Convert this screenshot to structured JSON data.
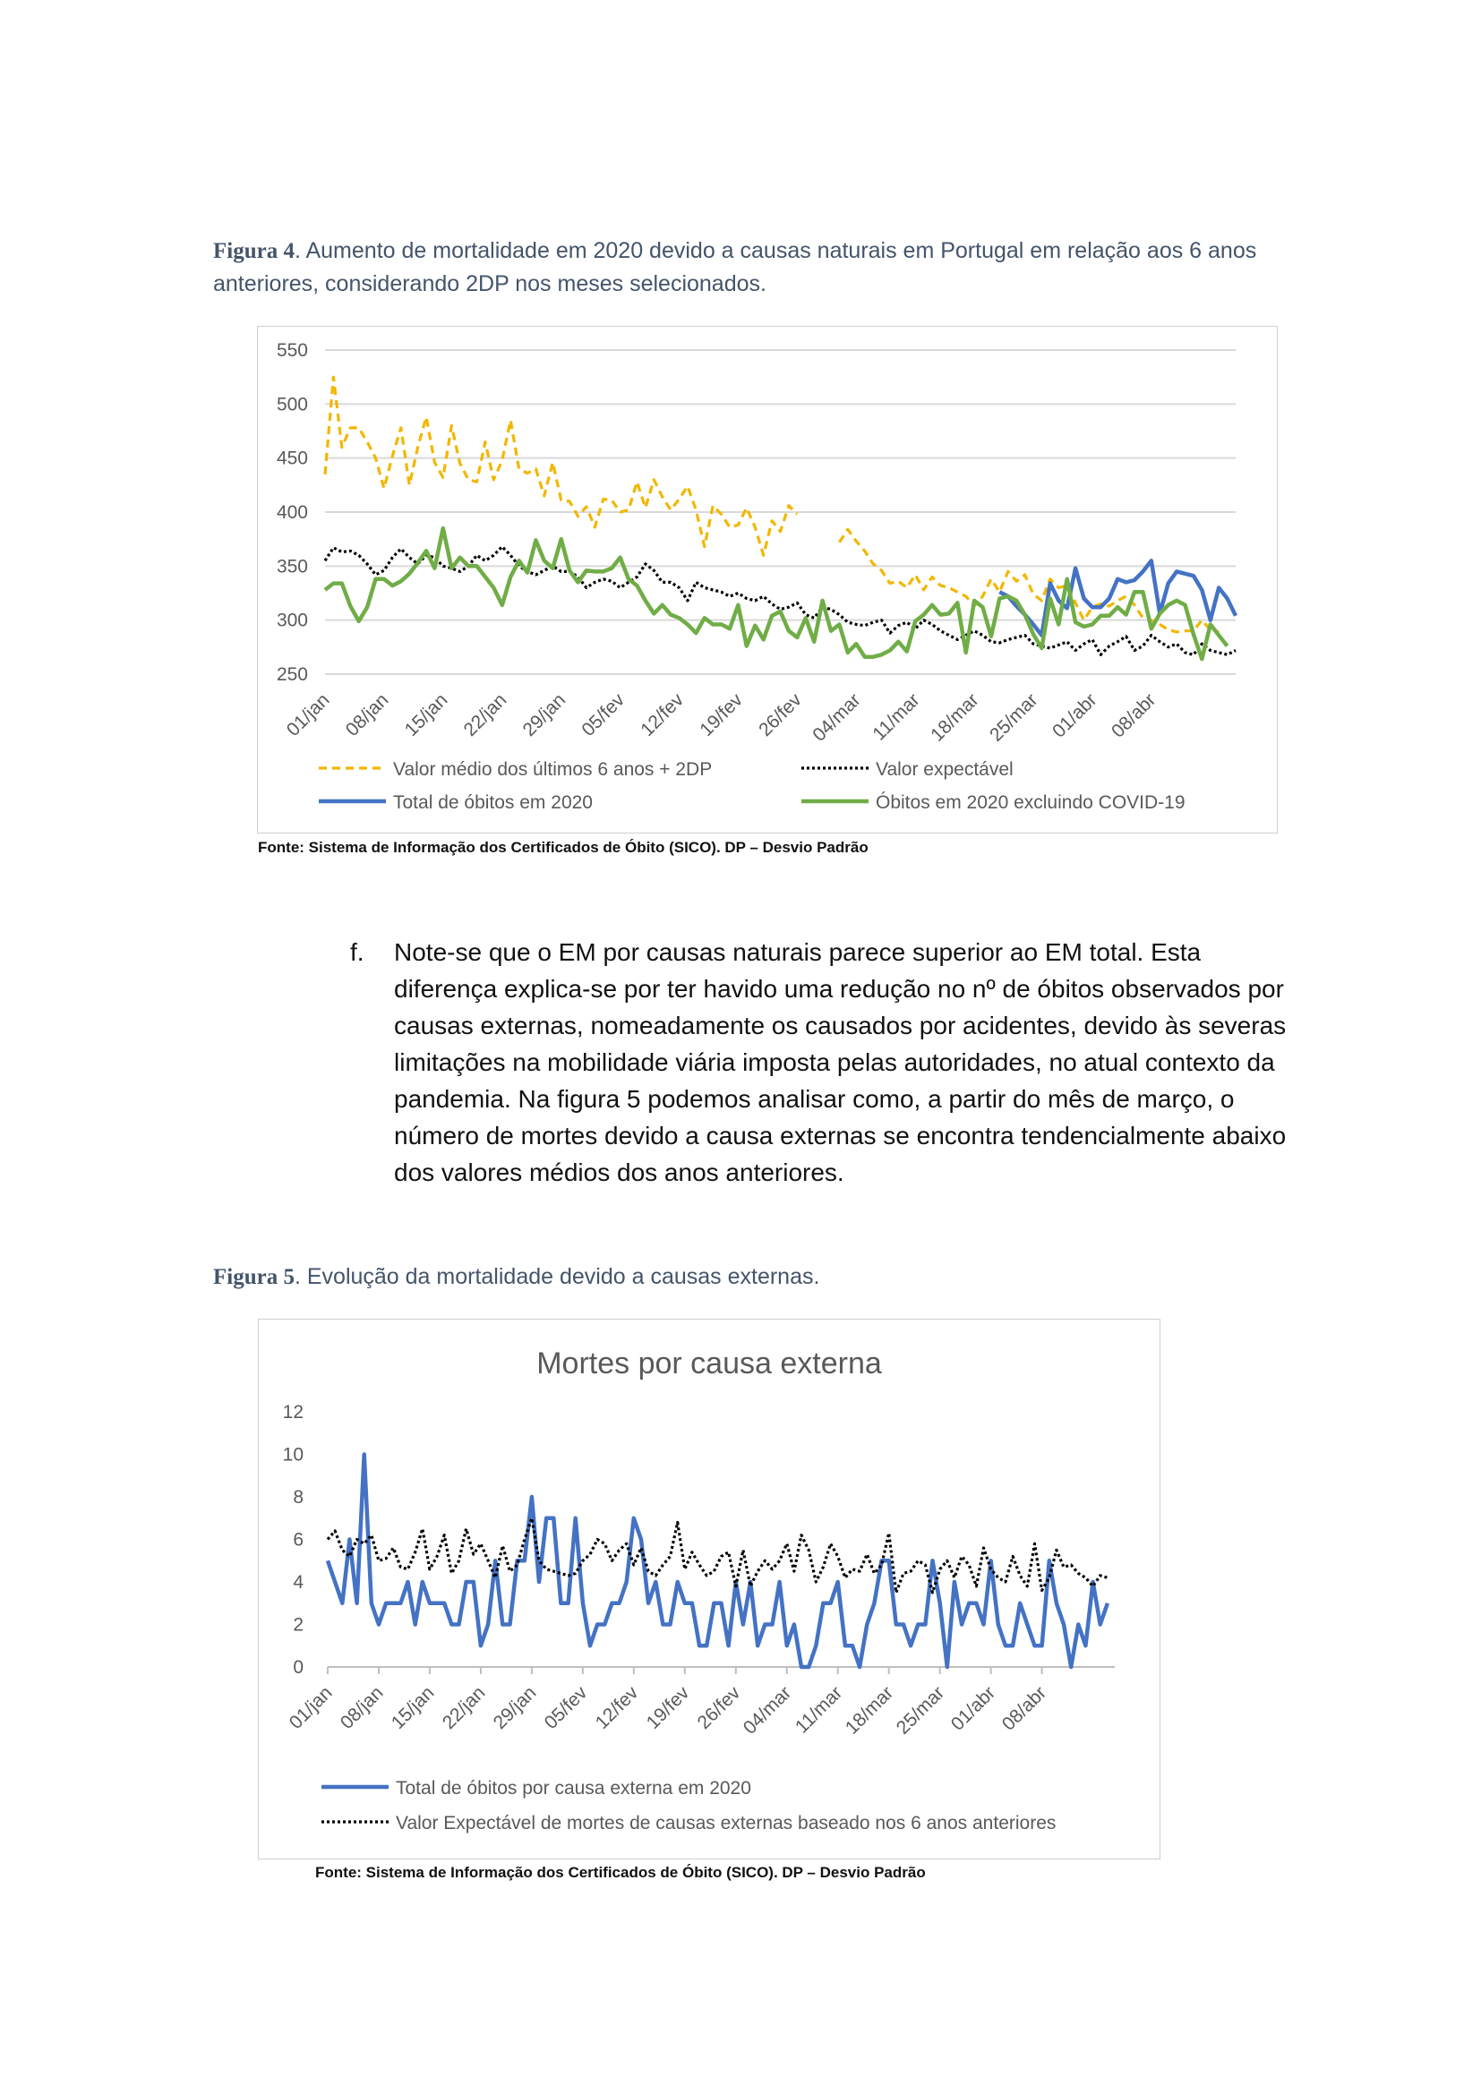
{
  "fig4": {
    "label": "Figura 4",
    "caption": ". Aumento de mortalidade em 2020 devido a causas naturais em Portugal em relação aos 6 anos anteriores, considerando 2DP nos meses selecionados.",
    "source": "Fonte: Sistema de Informação dos Certificados de Óbito (SICO). DP – Desvio Padrão"
  },
  "paragraph": {
    "marker": "f.",
    "text": "Note-se que o EM por causas naturais parece superior ao EM total. Esta diferença explica-se por ter havido uma redução no nº de óbitos observados por causas externas, nomeadamente os causados por acidentes, devido às severas limitações na mobilidade viária imposta pelas autoridades, no atual contexto da pandemia. Na figura 5 podemos analisar como, a partir do mês de março, o número de mortes devido a causa externas se encontra tendencialmente abaixo dos valores médios dos anos anteriores."
  },
  "fig5": {
    "label": "Figura 5",
    "caption": ". Evolução da mortalidade devido a causas externas.",
    "source": "Fonte: Sistema de Informação dos Certificados de Óbito (SICO). DP – Desvio Padrão"
  },
  "chart_data": [
    {
      "type": "line",
      "title": "",
      "x_tick_labels": [
        "01/jan",
        "08/jan",
        "15/jan",
        "22/jan",
        "29/jan",
        "05/fev",
        "12/fev",
        "19/fev",
        "26/fev",
        "04/mar",
        "11/mar",
        "18/mar",
        "25/mar",
        "01/abr",
        "08/abr"
      ],
      "x_range_days": [
        1,
        109
      ],
      "ylim": [
        250,
        550
      ],
      "y_ticks": [
        250,
        300,
        350,
        400,
        450,
        500,
        550
      ],
      "grid": true,
      "legend": "bottom",
      "series": [
        {
          "name": "Valor médio dos últimos 6 anos + 2DP",
          "style": "dashed",
          "color": "#f2b700",
          "segments": [
            {
              "start_day": 1,
              "values": [
                435,
                525,
                460,
                478,
                478,
                465,
                450,
                422,
                452,
                478,
                425,
                460,
                488,
                446,
                432,
                480,
                445,
                430,
                428,
                465,
                430,
                448,
                485,
                440,
                436,
                440,
                415,
                446,
                411,
                410,
                396,
                405,
                386,
                412,
                411,
                400,
                402,
                428,
                404,
                430,
                414,
                402,
                412,
                424,
                402,
                368,
                406,
                398,
                386,
                388,
                404,
                386,
                360,
                392,
                382,
                406,
                398
              ]
            },
            {
              "start_day": 62,
              "values": [
                372,
                384,
                373,
                364,
                352,
                346,
                334,
                336,
                330,
                342,
                328,
                340,
                332,
                330,
                326,
                322,
                313,
                322,
                338,
                326,
                345,
                336,
                342,
                324,
                318,
                338,
                330,
                332,
                316,
                300,
                312,
                315,
                313,
                318,
                322,
                314,
                302,
                300,
                296,
                291,
                289,
                290,
                290,
                300,
                291,
                289
              ]
            }
          ]
        },
        {
          "name": "Valor expectável",
          "style": "dotted",
          "color": "#000000",
          "segments": [
            {
              "start_day": 1,
              "values": [
                355,
                367,
                363,
                364,
                360,
                352,
                342,
                346,
                358,
                366,
                358,
                352,
                360,
                358,
                350,
                348,
                345,
                350,
                360,
                355,
                360,
                368,
                360,
                350,
                345,
                342,
                346,
                350,
                345,
                345,
                340,
                330,
                335,
                338,
                336,
                330,
                335,
                340,
                352,
                346,
                335,
                335,
                330,
                318,
                335,
                330,
                328,
                326,
                322,
                325,
                320,
                318,
                322,
                315,
                310,
                312,
                316,
                305,
                302,
                312,
                310,
                305,
                298,
                296,
                295,
                298,
                300,
                288,
                295,
                298,
                292,
                300,
                296,
                290,
                286,
                282,
                286,
                290,
                286,
                280,
                279,
                282,
                284,
                286,
                278,
                276,
                274,
                277,
                280,
                272,
                278,
                282,
                268,
                276,
                280,
                285,
                272,
                276,
                286,
                280,
                275,
                278,
                270,
                268,
                278,
                272,
                270,
                268,
                272
              ]
            }
          ]
        },
        {
          "name": "Total de óbitos em 2020",
          "style": "solid",
          "color": "#4472c4",
          "segments": [
            {
              "start_day": 81,
              "values": [
                326,
                322,
                313,
                305,
                296,
                286,
                334,
                318,
                311,
                348,
                320,
                312,
                312,
                320,
                338,
                335,
                337,
                345,
                355,
                306,
                334,
                345,
                343,
                341,
                328,
                300,
                330,
                320,
                304
              ]
            }
          ]
        },
        {
          "name": "Óbitos em 2020 excluindo COVID-19",
          "style": "solid",
          "color": "#70ad47",
          "segments": [
            {
              "start_day": 1,
              "values": [
                328,
                334,
                334,
                313,
                299,
                312,
                338,
                338,
                332,
                336,
                343,
                353,
                364,
                348,
                385,
                348,
                358,
                350,
                350,
                340,
                330,
                314,
                340,
                355,
                344,
                374,
                355,
                348,
                375,
                346,
                335,
                346,
                345,
                345,
                348,
                358,
                338,
                332,
                318,
                306,
                314,
                305,
                302,
                296,
                288,
                302,
                296,
                296,
                292,
                314,
                276,
                295,
                282,
                304,
                308,
                290,
                284,
                302,
                280,
                318,
                290,
                296,
                270,
                278,
                266,
                266,
                268,
                272,
                280,
                271,
                299,
                305,
                314,
                305,
                306,
                316,
                270,
                318,
                312,
                285,
                320,
                322,
                318,
                305,
                287,
                274,
                320,
                296,
                338,
                298,
                294,
                296,
                304,
                304,
                312,
                305,
                326,
                326,
                292,
                306,
                314,
                318,
                314,
                287,
                264,
                296,
                286,
                276
              ]
            }
          ]
        }
      ]
    },
    {
      "type": "line",
      "title": "Mortes por causa externa",
      "x_tick_labels": [
        "01/jan",
        "08/jan",
        "15/jan",
        "22/jan",
        "29/jan",
        "05/fev",
        "12/fev",
        "19/fev",
        "26/fev",
        "04/mar",
        "11/mar",
        "18/mar",
        "25/mar",
        "01/abr",
        "08/abr"
      ],
      "x_range_days": [
        1,
        109
      ],
      "ylim": [
        0,
        12
      ],
      "y_ticks": [
        0,
        2,
        4,
        6,
        8,
        10,
        12
      ],
      "grid": false,
      "legend": "bottom",
      "series": [
        {
          "name": "Total de óbitos por causa externa em 2020",
          "style": "solid",
          "color": "#4472c4",
          "segments": [
            {
              "start_day": 1,
              "values": [
                5,
                4,
                3,
                6,
                3,
                10,
                3,
                2,
                3,
                3,
                3,
                4,
                2,
                4,
                3,
                3,
                3,
                2,
                2,
                4,
                4,
                1,
                2,
                5,
                2,
                2,
                5,
                5,
                8,
                4,
                7,
                7,
                3,
                3,
                7,
                3,
                1,
                2,
                2,
                3,
                3,
                4,
                7,
                6,
                3,
                4,
                2,
                2,
                4,
                3,
                3,
                1,
                1,
                3,
                3,
                1,
                4,
                2,
                4,
                1,
                2,
                2,
                4,
                1,
                2,
                0,
                0,
                1,
                3,
                3,
                4,
                1,
                1,
                0,
                2,
                3,
                5,
                5,
                2,
                2,
                1,
                2,
                2,
                5,
                3,
                0,
                4,
                2,
                3,
                3,
                2,
                5,
                2,
                1,
                1,
                3,
                2,
                1,
                1,
                5,
                3,
                2,
                0,
                2,
                1,
                4,
                2,
                3
              ]
            }
          ]
        },
        {
          "name": "Valor Expectável de mortes de causas externas baseado nos 6 anos anteriores",
          "style": "dotted",
          "color": "#000000",
          "segments": [
            {
              "start_day": 1,
              "values": [
                6,
                6.4,
                5.5,
                5.2,
                6,
                5.8,
                6.2,
                5,
                5.1,
                5.6,
                4.7,
                4.6,
                5.4,
                6.5,
                4.6,
                5.2,
                6.2,
                4.4,
                5,
                6.5,
                5.3,
                5.8,
                5,
                4.2,
                5.7,
                4.5,
                4.8,
                6,
                7,
                5,
                4.6,
                4.5,
                4.4,
                4.3,
                4.4,
                5,
                5.3,
                6,
                5.8,
                5,
                5.5,
                5.8,
                4.8,
                5.6,
                4.5,
                4.3,
                4.8,
                5.2,
                6.8,
                4.6,
                5.4,
                4.8,
                4.3,
                4.5,
                5.2,
                5.4,
                3.8,
                5.5,
                3.8,
                4.5,
                5,
                4.6,
                5,
                5.8,
                4.5,
                6.2,
                5.5,
                4,
                4.7,
                5.8,
                5.2,
                4.2,
                4.6,
                4.5,
                5.3,
                4.4,
                4.8,
                6.3,
                3.5,
                4.4,
                4.5,
                5,
                4.8,
                3.5,
                4.6,
                5,
                4.2,
                5.2,
                4.8,
                3.8,
                5.6,
                4.6,
                4.2,
                4,
                5.2,
                4.3,
                3.8,
                5.8,
                3.6,
                4.2,
                5.5,
                4.7,
                4.8,
                4.4,
                4.2,
                3.8,
                4.3,
                4.2
              ]
            }
          ]
        }
      ]
    }
  ]
}
